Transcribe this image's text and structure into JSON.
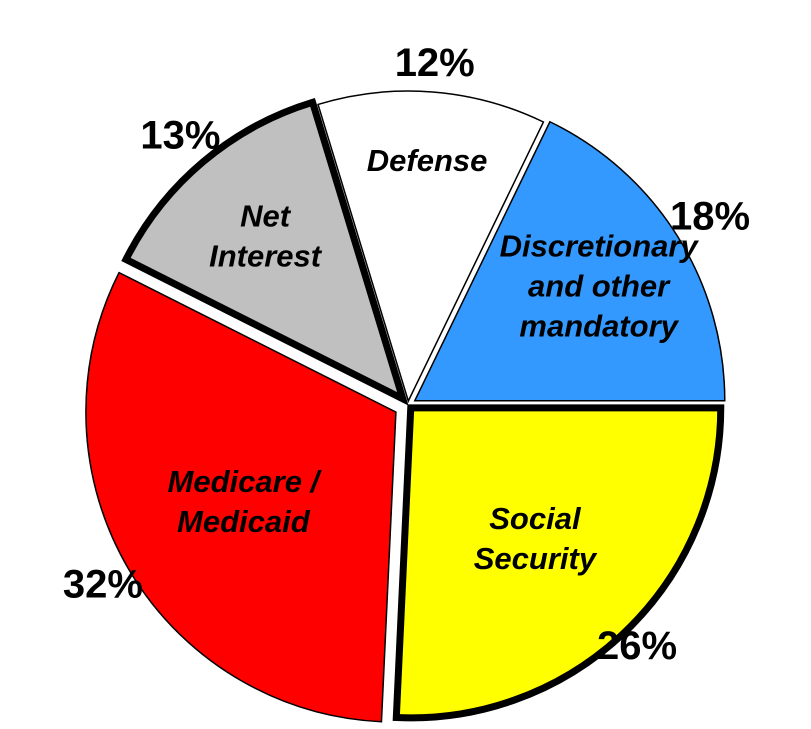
{
  "chart_data": {
    "type": "pie",
    "title": "",
    "legend": "none",
    "slices": [
      {
        "label_lines": [
          "Social",
          "Security"
        ],
        "value": 26,
        "value_label": "26%",
        "color": "#ffff00"
      },
      {
        "label_lines": [
          "Medicare /",
          "Medicaid"
        ],
        "value": 32,
        "value_label": "32%",
        "color": "#ff0000"
      },
      {
        "label_lines": [
          "Net",
          "Interest"
        ],
        "value": 13,
        "value_label": "13%",
        "color": "#c0c0c0"
      },
      {
        "label_lines": [
          "Defense"
        ],
        "value": 12,
        "value_label": "12%",
        "color": "#ffffff"
      },
      {
        "label_lines": [
          "Discretionary",
          "and other",
          "mandatory"
        ],
        "value": 18,
        "value_label": "18%",
        "color": "#3399ff"
      }
    ]
  }
}
